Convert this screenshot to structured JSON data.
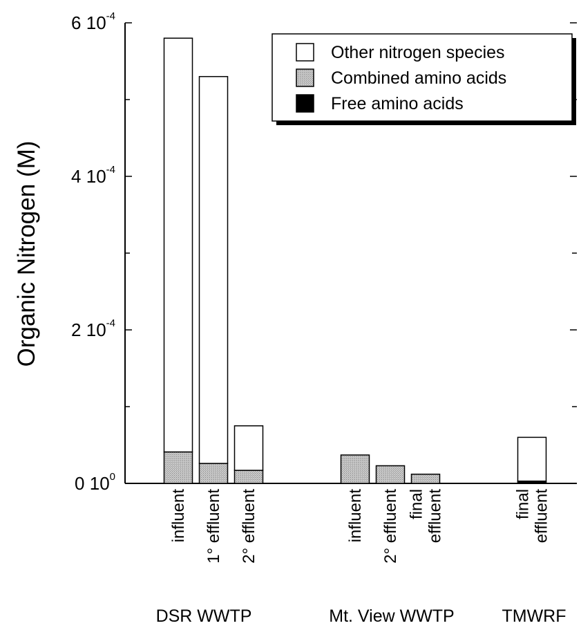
{
  "chart_data": {
    "type": "bar",
    "stacked": true,
    "ylabel": "Organic Nitrogen (M)",
    "ylim": [
      0,
      0.0006
    ],
    "y_ticks": [
      {
        "value": 0,
        "mantissa": "0 10",
        "exponent": "0"
      },
      {
        "value": 0.0002,
        "mantissa": "2 10",
        "exponent": "-4"
      },
      {
        "value": 0.0004,
        "mantissa": "4 10",
        "exponent": "-4"
      },
      {
        "value": 0.0006,
        "mantissa": "6 10",
        "exponent": "-4"
      }
    ],
    "groups": [
      {
        "name": "DSR WWTP",
        "categories": [
          {
            "label": [
              "influent"
            ],
            "free": 0,
            "combined": 4.1e-05,
            "other": 0.000539
          },
          {
            "label": [
              "1° effluent"
            ],
            "free": 0,
            "combined": 2.6e-05,
            "other": 0.000504
          },
          {
            "label": [
              "2° effluent"
            ],
            "free": 0,
            "combined": 1.7e-05,
            "other": 5.8e-05
          }
        ]
      },
      {
        "name": "Mt. View WWTP",
        "categories": [
          {
            "label": [
              "influent"
            ],
            "free": 0,
            "combined": 3.7e-05,
            "other": 0
          },
          {
            "label": [
              "2° effluent"
            ],
            "free": 0,
            "combined": 2.3e-05,
            "other": 0
          },
          {
            "label": [
              "final",
              "effluent"
            ],
            "free": 0,
            "combined": 1.2e-05,
            "other": 0
          }
        ]
      },
      {
        "name": "TMWRF",
        "categories": [
          {
            "label": [
              "final",
              "effluent"
            ],
            "free": 2e-06,
            "combined": 1e-06,
            "other": 5.7e-05
          }
        ]
      }
    ],
    "legend": {
      "placement": "top-right",
      "entries": [
        {
          "key": "other",
          "name": "Other nitrogen species",
          "color": "#ffffff"
        },
        {
          "key": "combined",
          "name": "Combined amino acids",
          "color": "#bdbdbd"
        },
        {
          "key": "free",
          "name": "Free amino acids",
          "color": "#000000"
        }
      ]
    }
  }
}
